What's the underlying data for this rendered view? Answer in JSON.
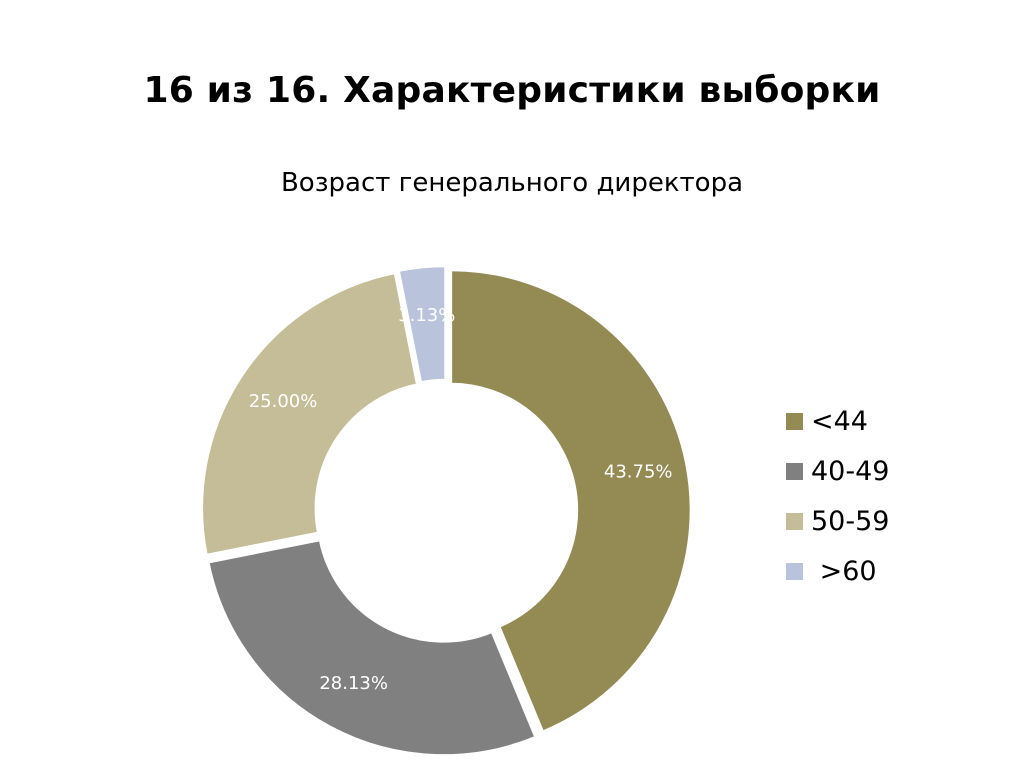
{
  "slide": {
    "title": "16 из 16. Характеристики выборки"
  },
  "chart_data": {
    "type": "pie",
    "variant": "doughnut",
    "title": "Возраст генерального директора",
    "legend_position": "right",
    "categories": [
      "<44",
      "40-49",
      "50-59",
      " >60"
    ],
    "values": [
      43.75,
      28.13,
      25.0,
      3.13
    ],
    "data_labels": [
      "43.75%",
      "28.13%",
      "25.00%",
      "3.13%"
    ],
    "colors": [
      "#948A54",
      "#808080",
      "#C4BD97",
      "#B9C3DC"
    ],
    "exploded": true
  }
}
